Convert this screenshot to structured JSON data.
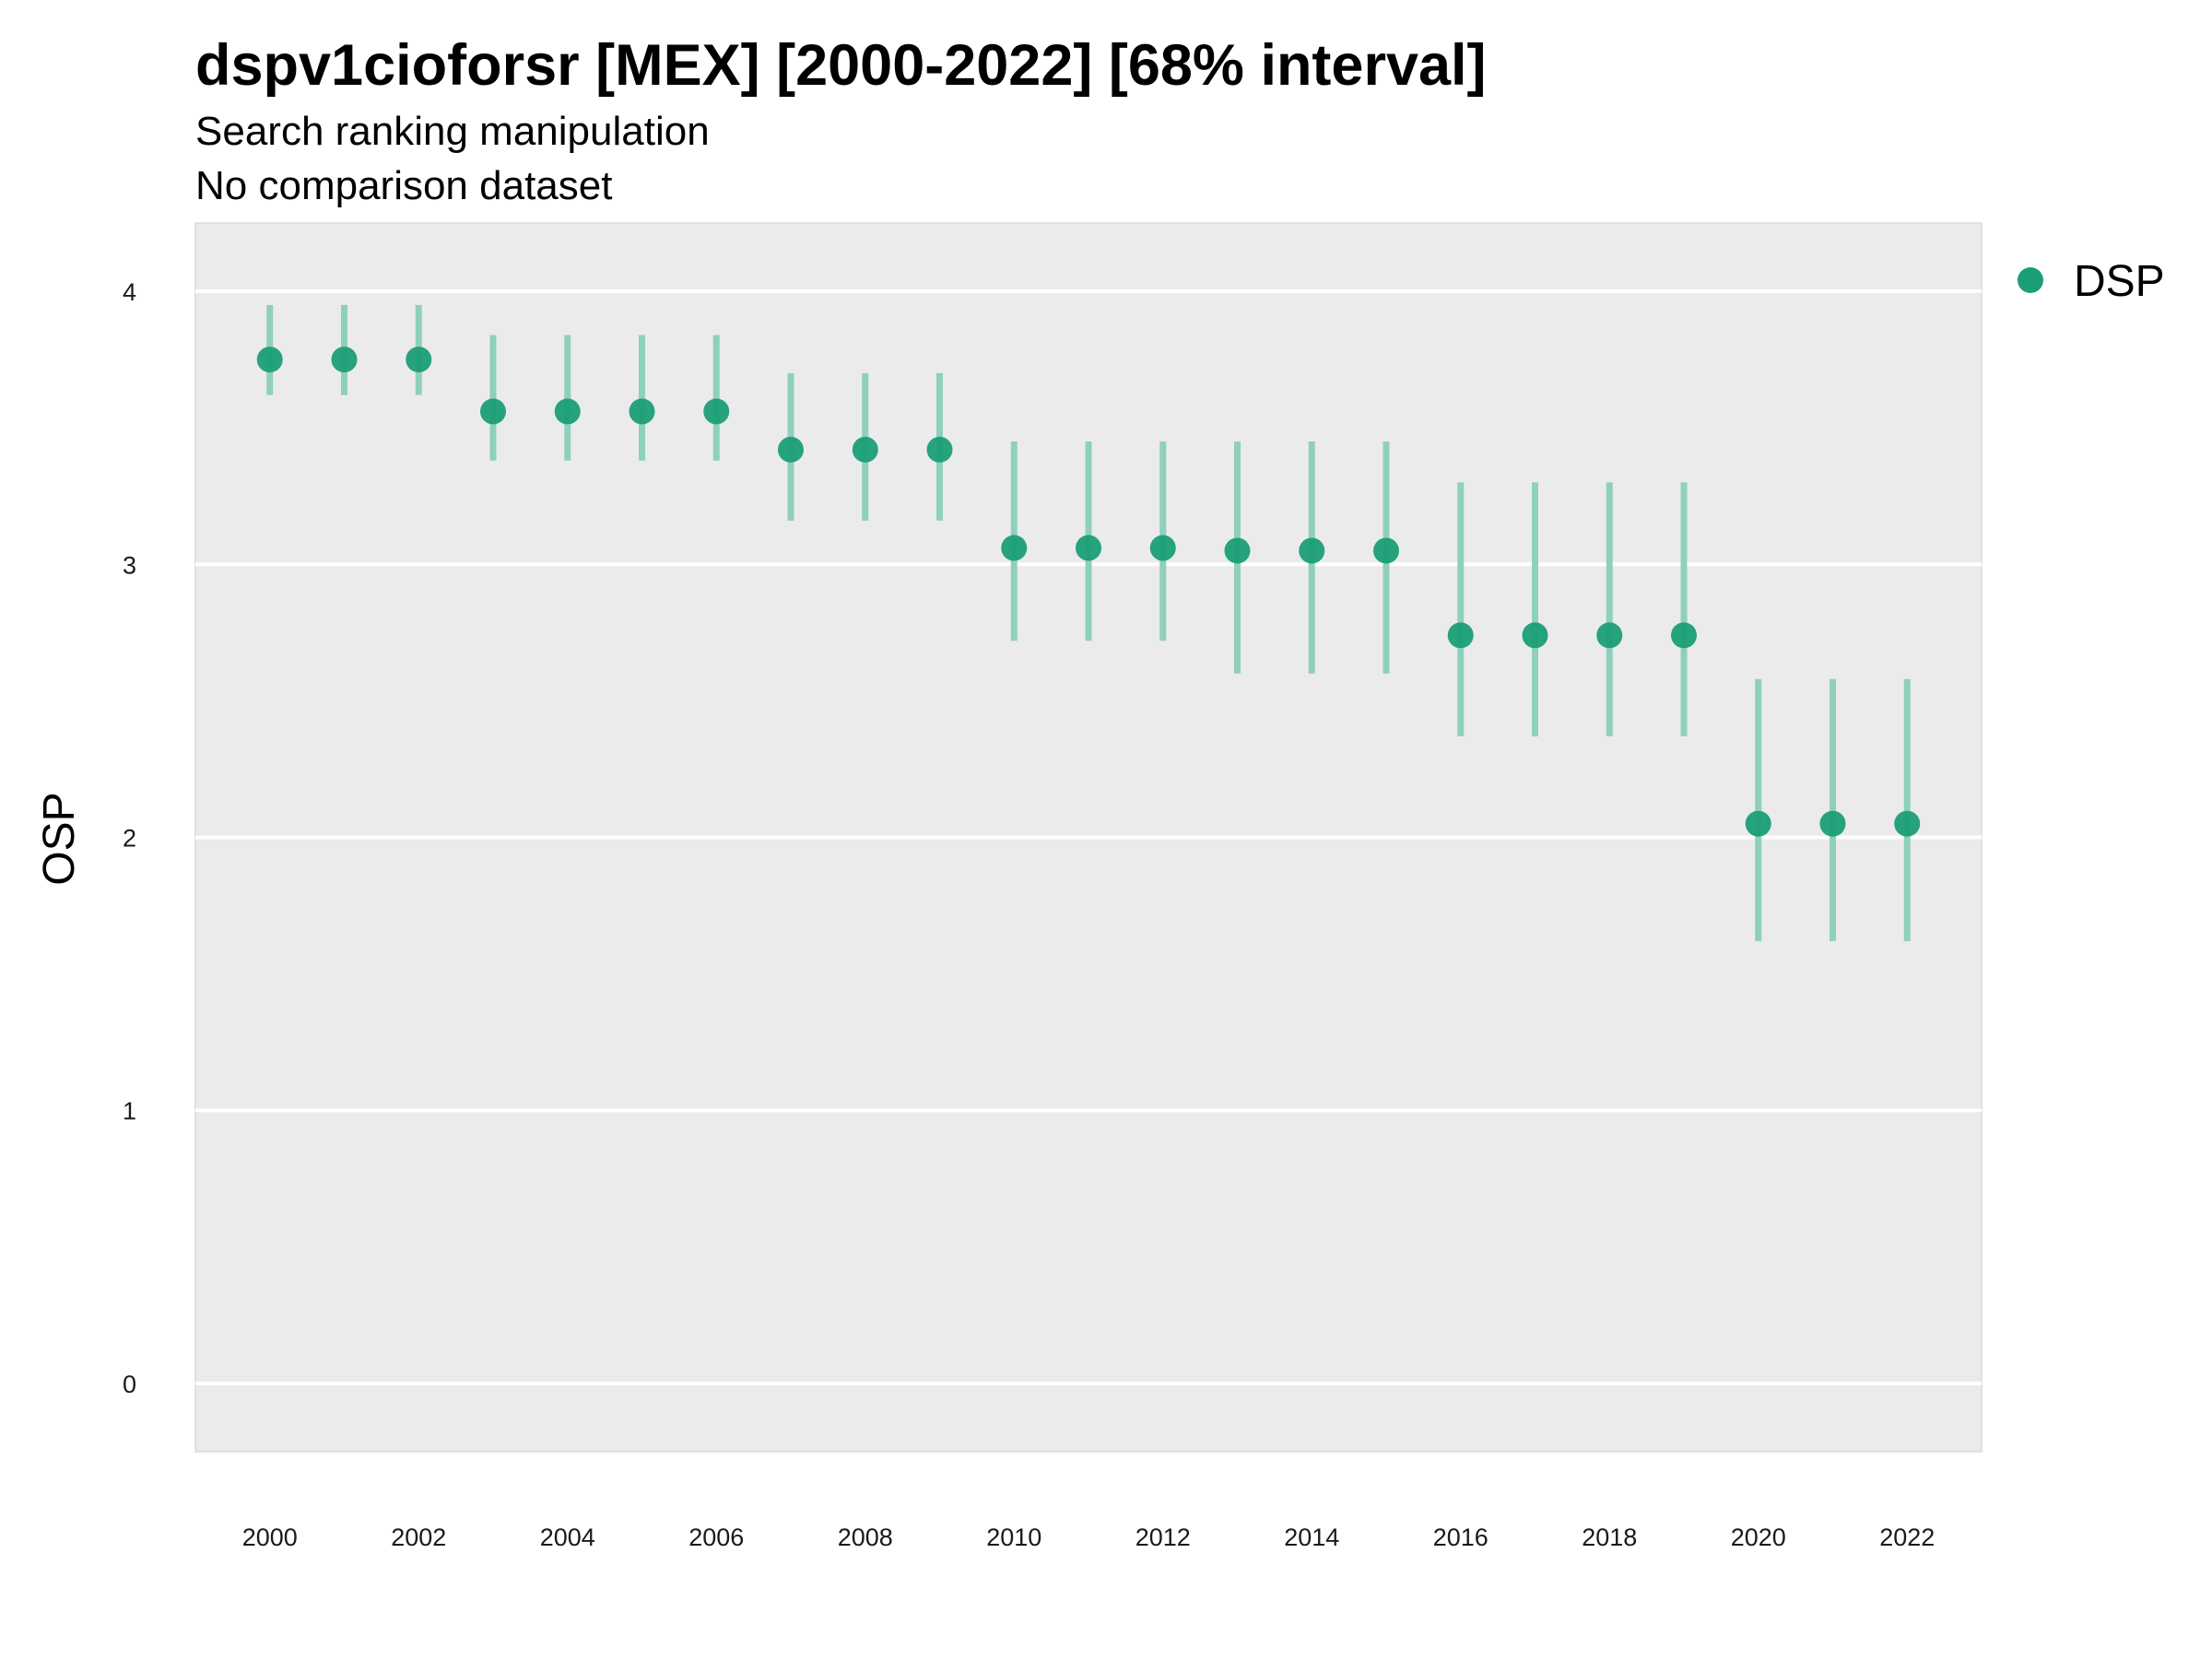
{
  "chart_data": {
    "type": "scatter",
    "title": "dspv1cioforsr [MEX] [2000-2022] [68% interval]",
    "subtitle": "Search ranking manipulation",
    "caption": "No comparison dataset",
    "xlabel": "",
    "ylabel": "OSP",
    "xlim": [
      1999.0,
      2023.0
    ],
    "ylim": [
      -0.25,
      4.25
    ],
    "x_ticks": [
      2000,
      2002,
      2004,
      2006,
      2008,
      2010,
      2012,
      2014,
      2016,
      2018,
      2020,
      2022
    ],
    "y_ticks": [
      0,
      1,
      2,
      3,
      4
    ],
    "grid": true,
    "legend": {
      "position": "right",
      "entries": [
        "DSP"
      ]
    },
    "colors": {
      "point": "#1b9e77",
      "interval": "#8fd0ba",
      "panel": "#ebebeb",
      "grid": "#ffffff"
    },
    "series": [
      {
        "name": "DSP",
        "x": [
          2000,
          2001,
          2002,
          2003,
          2004,
          2005,
          2006,
          2007,
          2008,
          2009,
          2010,
          2011,
          2012,
          2013,
          2014,
          2015,
          2016,
          2017,
          2018,
          2019,
          2020,
          2021,
          2022
        ],
        "y": [
          3.75,
          3.75,
          3.75,
          3.56,
          3.56,
          3.56,
          3.56,
          3.42,
          3.42,
          3.42,
          3.06,
          3.06,
          3.06,
          3.05,
          3.05,
          3.05,
          2.74,
          2.74,
          2.74,
          2.74,
          2.05,
          2.05,
          2.05
        ],
        "lower": [
          3.62,
          3.62,
          3.62,
          3.38,
          3.38,
          3.38,
          3.38,
          3.16,
          3.16,
          3.16,
          2.72,
          2.72,
          2.72,
          2.6,
          2.6,
          2.6,
          2.37,
          2.37,
          2.37,
          2.37,
          1.62,
          1.62,
          1.62
        ],
        "upper": [
          3.95,
          3.95,
          3.95,
          3.84,
          3.84,
          3.84,
          3.84,
          3.7,
          3.7,
          3.7,
          3.45,
          3.45,
          3.45,
          3.45,
          3.45,
          3.45,
          3.3,
          3.3,
          3.3,
          3.3,
          2.58,
          2.58,
          2.58
        ]
      }
    ]
  }
}
